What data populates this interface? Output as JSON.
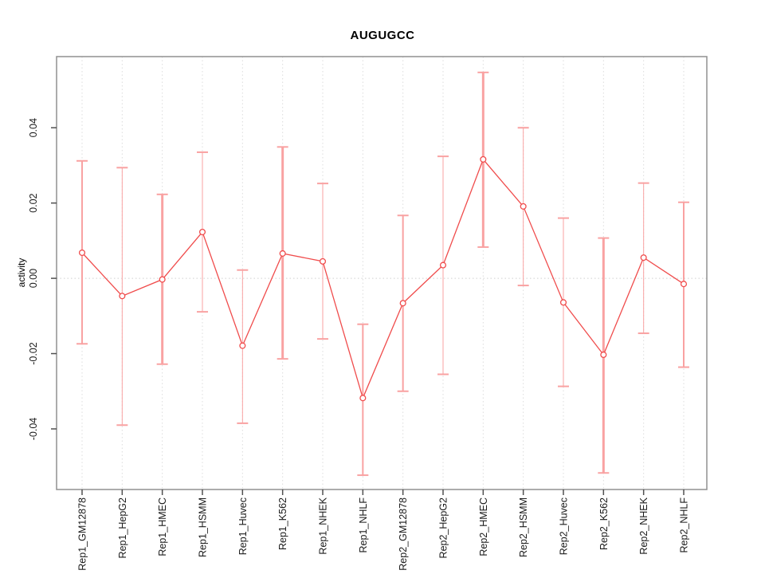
{
  "page": {
    "background": "#ffffff"
  },
  "chart_data": {
    "type": "line",
    "title": "AUGUGCC",
    "xlabel": "",
    "ylabel": "activity",
    "legend": "none",
    "grid": {
      "vertical_dotted": true,
      "zero_line_dotted": true
    },
    "categories": [
      "Rep1_GM12878",
      "Rep1_HepG2",
      "Rep1_HMEC",
      "Rep1_HSMM",
      "Rep1_Huvec",
      "Rep1_K562",
      "Rep1_NHEK",
      "Rep1_NHLF",
      "Rep2_GM12878",
      "Rep2_HepG2",
      "Rep2_HMEC",
      "Rep2_HSMM",
      "Rep2_Huvec",
      "Rep2_K562",
      "Rep2_NHEK",
      "Rep2_NHLF"
    ],
    "series": [
      {
        "name": "activity",
        "marker": "open-circle",
        "values": [
          0.0068,
          -0.0047,
          -0.0003,
          0.0123,
          -0.0179,
          0.0066,
          0.0045,
          -0.0318,
          -0.0066,
          0.0035,
          0.0316,
          0.0191,
          -0.0064,
          -0.0203,
          0.0055,
          -0.0015
        ],
        "err_high": [
          0.0312,
          0.0294,
          0.0223,
          0.0335,
          0.0022,
          0.0349,
          0.0252,
          -0.0122,
          0.0167,
          0.0324,
          0.0547,
          0.04,
          0.016,
          0.0107,
          0.0253,
          0.0202
        ],
        "err_low": [
          -0.0174,
          -0.039,
          -0.0228,
          -0.0089,
          -0.0385,
          -0.0214,
          -0.0161,
          -0.0523,
          -0.03,
          -0.0255,
          0.0083,
          -0.0019,
          -0.0287,
          -0.0517,
          -0.0146,
          -0.0236
        ],
        "bar_widths": [
          2,
          1,
          3,
          1,
          1,
          3,
          1,
          2,
          2,
          1,
          3,
          1,
          1,
          3,
          1,
          2
        ]
      }
    ],
    "ytick_values": [
      -0.04,
      -0.02,
      0,
      0.02,
      0.04
    ],
    "ytick_labels": [
      "-0.04",
      "-0.02",
      "0.00",
      "0.02",
      "0.04"
    ],
    "ylim": [
      -0.0561,
      0.0589
    ],
    "colors": {
      "line": "#f04c4c",
      "error_bar": "#f9a2a2",
      "grid": "#dcdcdc",
      "zero_line": "#d0d0d0",
      "box": "#909090",
      "tick": "#505050",
      "text": "#1a1a1a"
    }
  }
}
